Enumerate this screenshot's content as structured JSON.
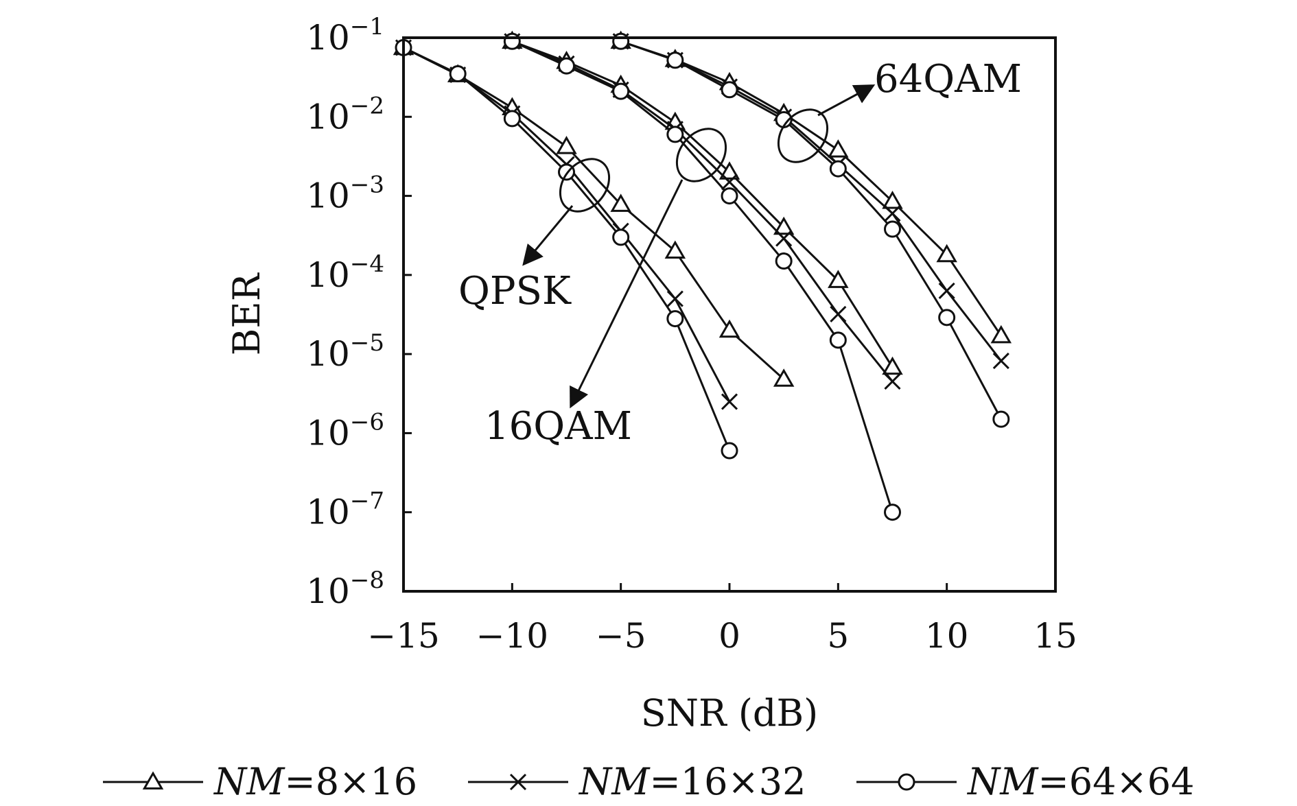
{
  "chart_data": {
    "type": "line",
    "xlabel": "SNR (dB)",
    "ylabel": "BER",
    "xlim": [
      -15,
      15
    ],
    "ylim": [
      1e-08,
      0.1
    ],
    "yscale": "log",
    "x_ticks": [
      -15,
      -10,
      -5,
      0,
      5,
      10,
      15
    ],
    "x_tick_labels": [
      "−15",
      "−10",
      "−5",
      "0",
      "5",
      "10",
      "15"
    ],
    "y_tick_exponents": [
      -1,
      -2,
      -3,
      -4,
      -5,
      -6,
      -7,
      -8
    ],
    "grid": false,
    "legend": {
      "position": "bottom",
      "entries": [
        {
          "key": "nm8x16",
          "marker": "triangle",
          "prefix": "NM",
          "text": "=8×16"
        },
        {
          "key": "nm16x32",
          "marker": "cross",
          "prefix": "NM",
          "text": "=16×32"
        },
        {
          "key": "nm64x64",
          "marker": "circle",
          "prefix": "NM",
          "text": "=64×64"
        }
      ]
    },
    "annotations": [
      {
        "text": "QPSK"
      },
      {
        "text": "16QAM"
      },
      {
        "text": "64QAM"
      }
    ],
    "series": [
      {
        "modulation": "QPSK",
        "config": "nm8x16",
        "marker": "triangle",
        "x": [
          -15,
          -12.5,
          -10,
          -7.5,
          -5,
          -2.5,
          0,
          2.5
        ],
        "y": [
          0.075,
          0.034,
          0.013,
          0.0042,
          0.00078,
          0.0002,
          2e-05,
          4.8e-06
        ]
      },
      {
        "modulation": "QPSK",
        "config": "nm16x32",
        "marker": "cross",
        "x": [
          -15,
          -12.5,
          -10,
          -7.5,
          -5,
          -2.5,
          0
        ],
        "y": [
          0.075,
          0.034,
          0.011,
          0.0025,
          0.00036,
          5e-05,
          2.5e-06
        ]
      },
      {
        "modulation": "QPSK",
        "config": "nm64x64",
        "marker": "circle",
        "x": [
          -15,
          -12.5,
          -10,
          -7.5,
          -5,
          -2.5,
          0
        ],
        "y": [
          0.075,
          0.035,
          0.0095,
          0.002,
          0.0003,
          2.8e-05,
          6e-07
        ]
      },
      {
        "modulation": "16QAM",
        "config": "nm8x16",
        "marker": "triangle",
        "x": [
          -10,
          -7.5,
          -5,
          -2.5,
          0,
          2.5,
          5,
          7.5
        ],
        "y": [
          0.09,
          0.05,
          0.025,
          0.0085,
          0.002,
          0.0004,
          8.5e-05,
          6.8e-06
        ]
      },
      {
        "modulation": "16QAM",
        "config": "nm16x32",
        "marker": "cross",
        "x": [
          -10,
          -7.5,
          -5,
          -2.5,
          0,
          2.5,
          5,
          7.5
        ],
        "y": [
          0.09,
          0.047,
          0.022,
          0.007,
          0.0015,
          0.00029,
          3.2e-05,
          4.5e-06
        ]
      },
      {
        "modulation": "16QAM",
        "config": "nm64x64",
        "marker": "circle",
        "x": [
          -10,
          -7.5,
          -5,
          -2.5,
          0,
          2.5,
          5,
          7.5
        ],
        "y": [
          0.09,
          0.044,
          0.021,
          0.006,
          0.001,
          0.00015,
          1.5e-05,
          1e-07
        ]
      },
      {
        "modulation": "64QAM",
        "config": "nm8x16",
        "marker": "triangle",
        "x": [
          -5,
          -2.5,
          0,
          2.5,
          5,
          7.5,
          10,
          12.5
        ],
        "y": [
          0.09,
          0.053,
          0.027,
          0.011,
          0.0038,
          0.00085,
          0.00018,
          1.7e-05
        ]
      },
      {
        "modulation": "64QAM",
        "config": "nm16x32",
        "marker": "cross",
        "x": [
          -5,
          -2.5,
          0,
          2.5,
          5,
          7.5,
          10,
          12.5
        ],
        "y": [
          0.09,
          0.052,
          0.024,
          0.01,
          0.0025,
          0.0006,
          6.3e-05,
          8.2e-06
        ]
      },
      {
        "modulation": "64QAM",
        "config": "nm64x64",
        "marker": "circle",
        "x": [
          -5,
          -2.5,
          0,
          2.5,
          5,
          7.5,
          10,
          12.5
        ],
        "y": [
          0.09,
          0.052,
          0.022,
          0.0092,
          0.0022,
          0.00038,
          2.9e-05,
          1.5e-06
        ]
      }
    ]
  }
}
